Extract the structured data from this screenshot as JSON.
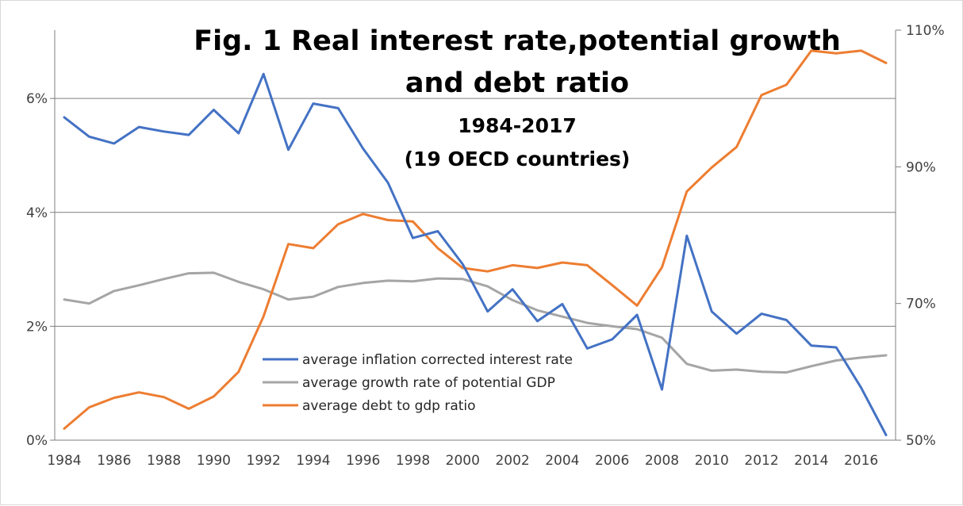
{
  "chart_data": {
    "type": "line",
    "title_lines": [
      "Fig. 1 Real interest rate,potential growth",
      "and debt ratio"
    ],
    "subtitle_lines": [
      "1984-2017",
      "(19 OECD countries)"
    ],
    "xlabel": "",
    "ylabel": "",
    "x": [
      1984,
      1985,
      1986,
      1987,
      1988,
      1989,
      1990,
      1991,
      1992,
      1993,
      1994,
      1995,
      1996,
      1997,
      1998,
      1999,
      2000,
      2001,
      2002,
      2003,
      2004,
      2005,
      2006,
      2007,
      2008,
      2009,
      2010,
      2011,
      2012,
      2013,
      2014,
      2015,
      2016,
      2017
    ],
    "x_tick_labels": [
      "1984",
      "1986",
      "1988",
      "1990",
      "1992",
      "1994",
      "1996",
      "1998",
      "2000",
      "2002",
      "2004",
      "2006",
      "2008",
      "2010",
      "2012",
      "2014",
      "2016"
    ],
    "y_left": {
      "ylim": [
        0,
        7.2
      ],
      "tick_values": [
        0,
        2,
        4,
        6
      ],
      "tick_labels": [
        "0%",
        "2%",
        "4%",
        "6%"
      ]
    },
    "y_right": {
      "ylim": [
        50,
        110
      ],
      "tick_values": [
        50,
        70,
        90,
        110
      ],
      "tick_labels": [
        "50%",
        "70%",
        "90%",
        "110%"
      ]
    },
    "grid": true,
    "legend_position": "bottom-center",
    "series": [
      {
        "name": "average inflation corrected interest rate",
        "axis": "left",
        "color": "#4472c4",
        "values": [
          5.67,
          5.33,
          5.21,
          5.5,
          5.42,
          5.36,
          5.8,
          5.39,
          6.43,
          5.1,
          5.91,
          5.83,
          5.12,
          4.52,
          3.55,
          3.67,
          3.09,
          2.26,
          2.65,
          2.09,
          2.39,
          1.61,
          1.77,
          2.2,
          0.89,
          3.59,
          2.26,
          1.87,
          2.22,
          2.11,
          1.66,
          1.63,
          0.92,
          0.09
        ]
      },
      {
        "name": "average growth rate of potential GDP",
        "axis": "left",
        "color": "#a5a5a5",
        "values": [
          2.47,
          2.4,
          2.62,
          2.72,
          2.83,
          2.93,
          2.94,
          2.78,
          2.65,
          2.47,
          2.52,
          2.69,
          2.76,
          2.8,
          2.79,
          2.84,
          2.83,
          2.7,
          2.46,
          2.28,
          2.17,
          2.06,
          2.0,
          1.95,
          1.8,
          1.34,
          1.22,
          1.24,
          1.2,
          1.19,
          1.3,
          1.4,
          1.45,
          1.49
        ]
      },
      {
        "name": "average debt to gdp ratio",
        "axis": "right",
        "color": "#ed7d31",
        "values": [
          51.7,
          54.8,
          56.2,
          57.0,
          56.3,
          54.6,
          56.4,
          60.0,
          68.1,
          78.7,
          78.1,
          81.6,
          83.1,
          82.2,
          82.0,
          78.1,
          75.2,
          74.7,
          75.6,
          75.2,
          76.0,
          75.6,
          72.7,
          69.7,
          75.3,
          86.4,
          89.9,
          92.9,
          100.5,
          102.0,
          107.0,
          106.6,
          107.0,
          105.2
        ]
      }
    ]
  }
}
